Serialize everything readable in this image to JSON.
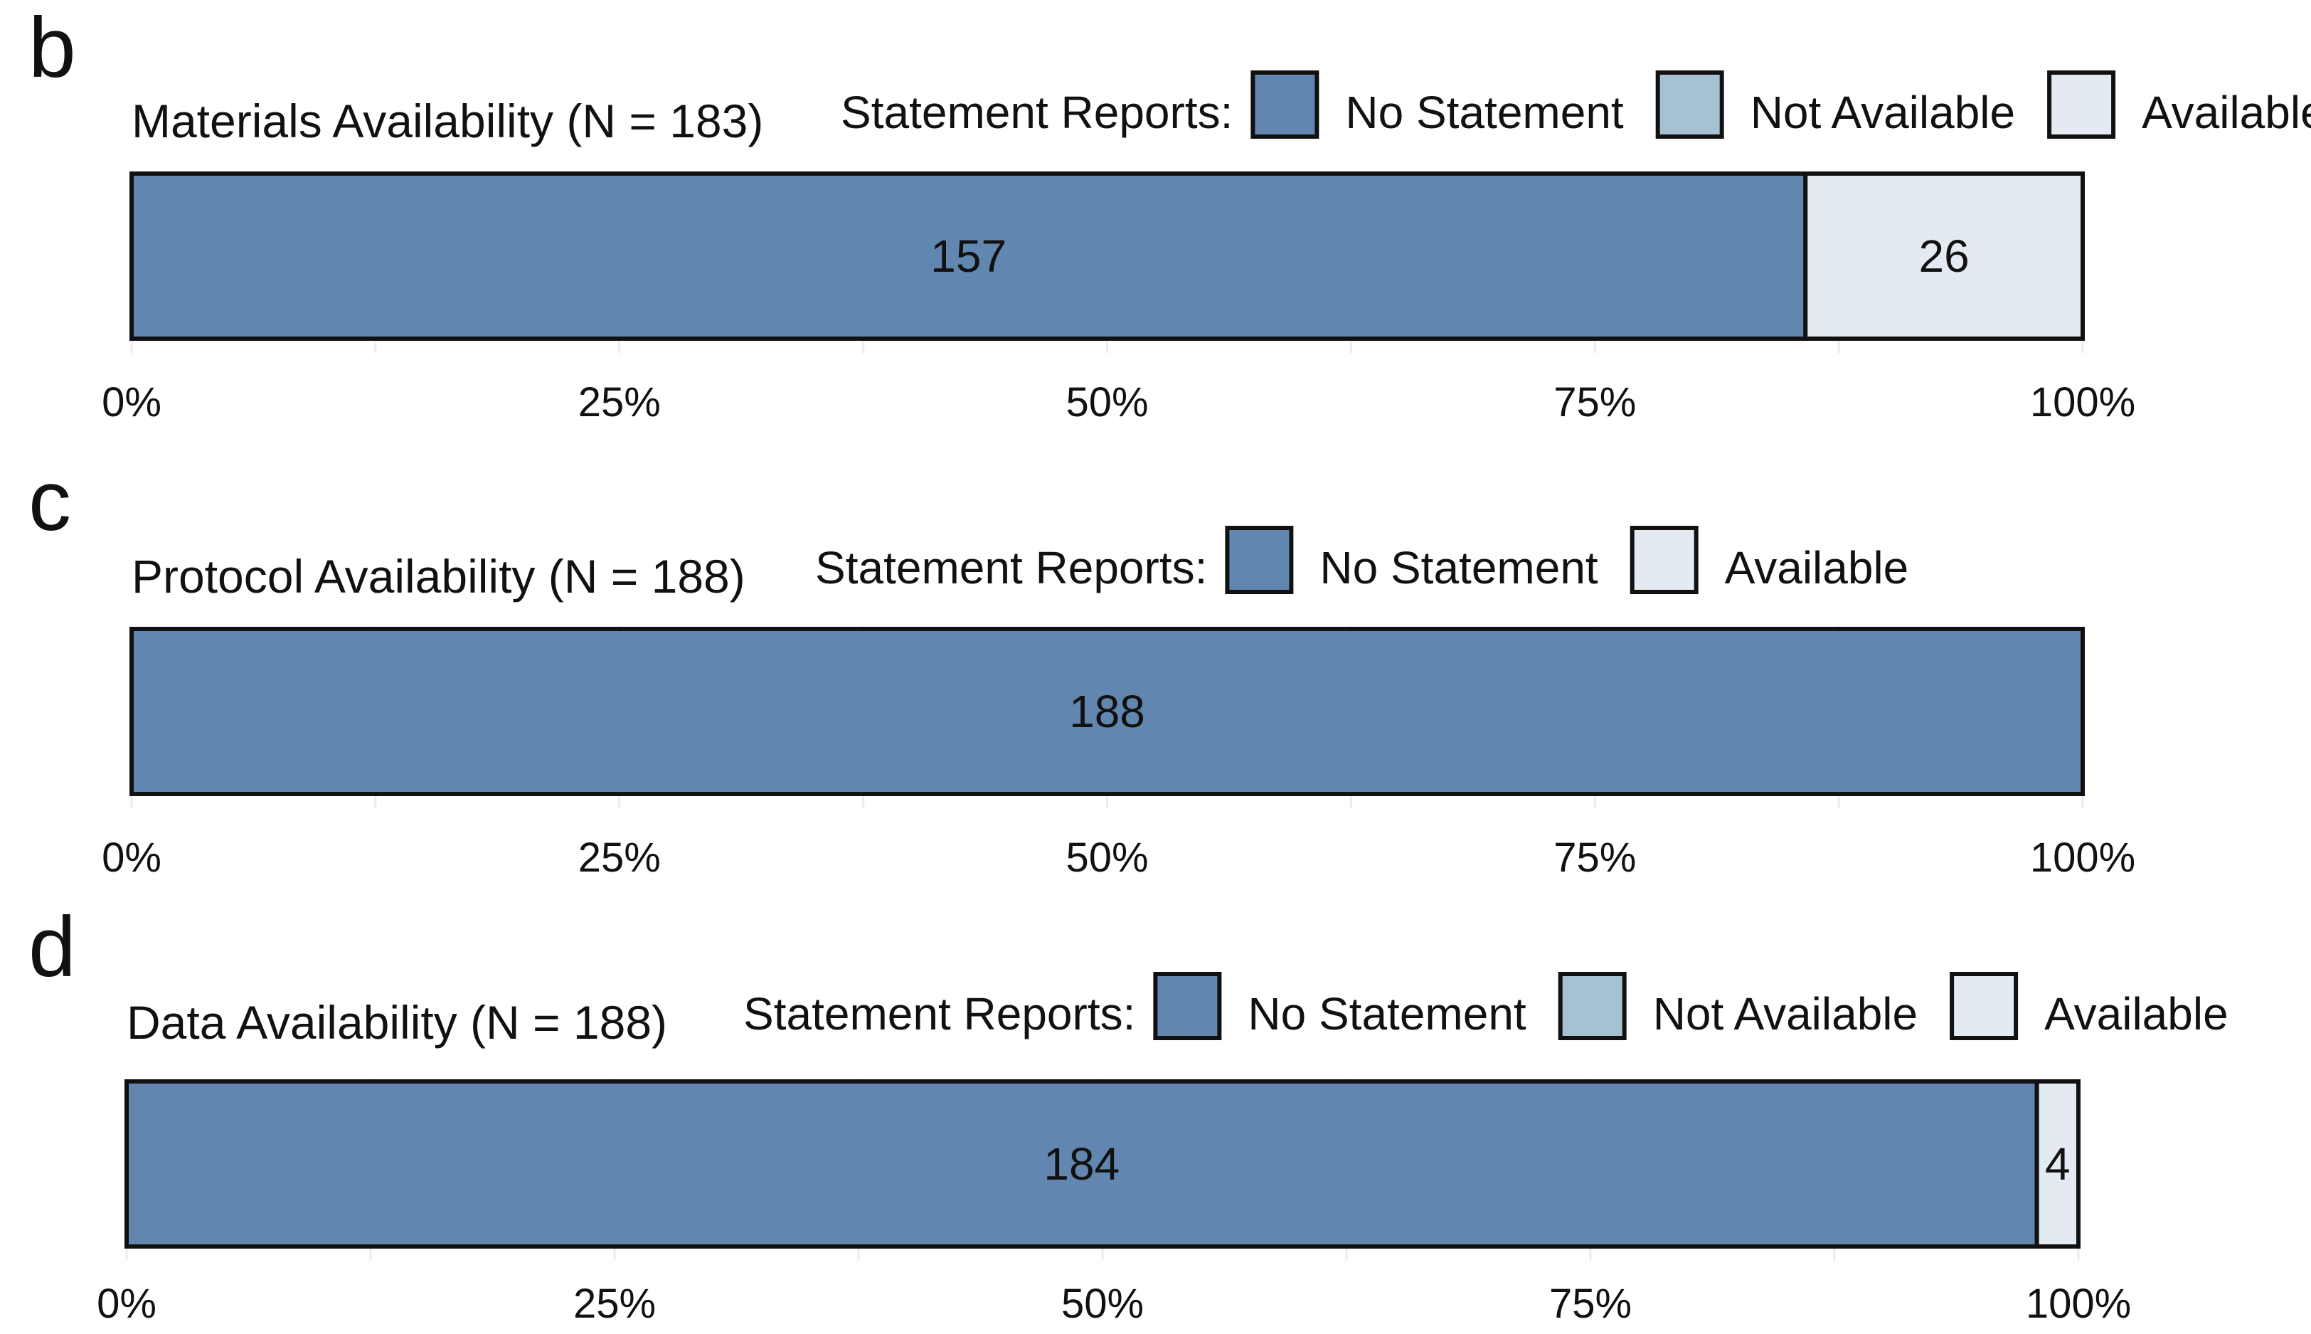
{
  "colors": {
    "No Statement": "#6186b0",
    "Not Available": "#a6c1d2",
    "Available": "#e4eaf1",
    "outline": "#111111",
    "grid": "#ececec"
  },
  "legend_lead": "Statement Reports:",
  "chart_data": [
    {
      "type": "bar",
      "orientation": "horizontal-stacked-percent",
      "panel": "b",
      "title": "Materials Availability (N = 183)",
      "n": 183,
      "legend": [
        "No Statement",
        "Not Available",
        "Available"
      ],
      "segments": [
        {
          "category": "No Statement",
          "value": 157,
          "label": "157"
        },
        {
          "category": "Not Available",
          "value": 0,
          "label": ""
        },
        {
          "category": "Available",
          "value": 26,
          "label": "26"
        }
      ],
      "x_ticks": [
        "0%",
        "25%",
        "50%",
        "75%",
        "100%"
      ],
      "xlim": [
        0,
        100
      ],
      "grid": true
    },
    {
      "type": "bar",
      "orientation": "horizontal-stacked-percent",
      "panel": "c",
      "title": "Protocol Availability (N = 188)",
      "n": 188,
      "legend": [
        "No Statement",
        "Available"
      ],
      "segments": [
        {
          "category": "No Statement",
          "value": 188,
          "label": "188"
        },
        {
          "category": "Available",
          "value": 0,
          "label": ""
        }
      ],
      "x_ticks": [
        "0%",
        "25%",
        "50%",
        "75%",
        "100%"
      ],
      "xlim": [
        0,
        100
      ],
      "grid": true
    },
    {
      "type": "bar",
      "orientation": "horizontal-stacked-percent",
      "panel": "d",
      "title": "Data Availability (N = 188)",
      "n": 188,
      "legend": [
        "No Statement",
        "Not Available",
        "Available"
      ],
      "segments": [
        {
          "category": "No Statement",
          "value": 184,
          "label": "184"
        },
        {
          "category": "Not Available",
          "value": 0,
          "label": ""
        },
        {
          "category": "Available",
          "value": 4,
          "label": "4"
        }
      ],
      "x_ticks": [
        "0%",
        "25%",
        "50%",
        "75%",
        "100%"
      ],
      "xlim": [
        0,
        100
      ],
      "grid": true
    }
  ]
}
